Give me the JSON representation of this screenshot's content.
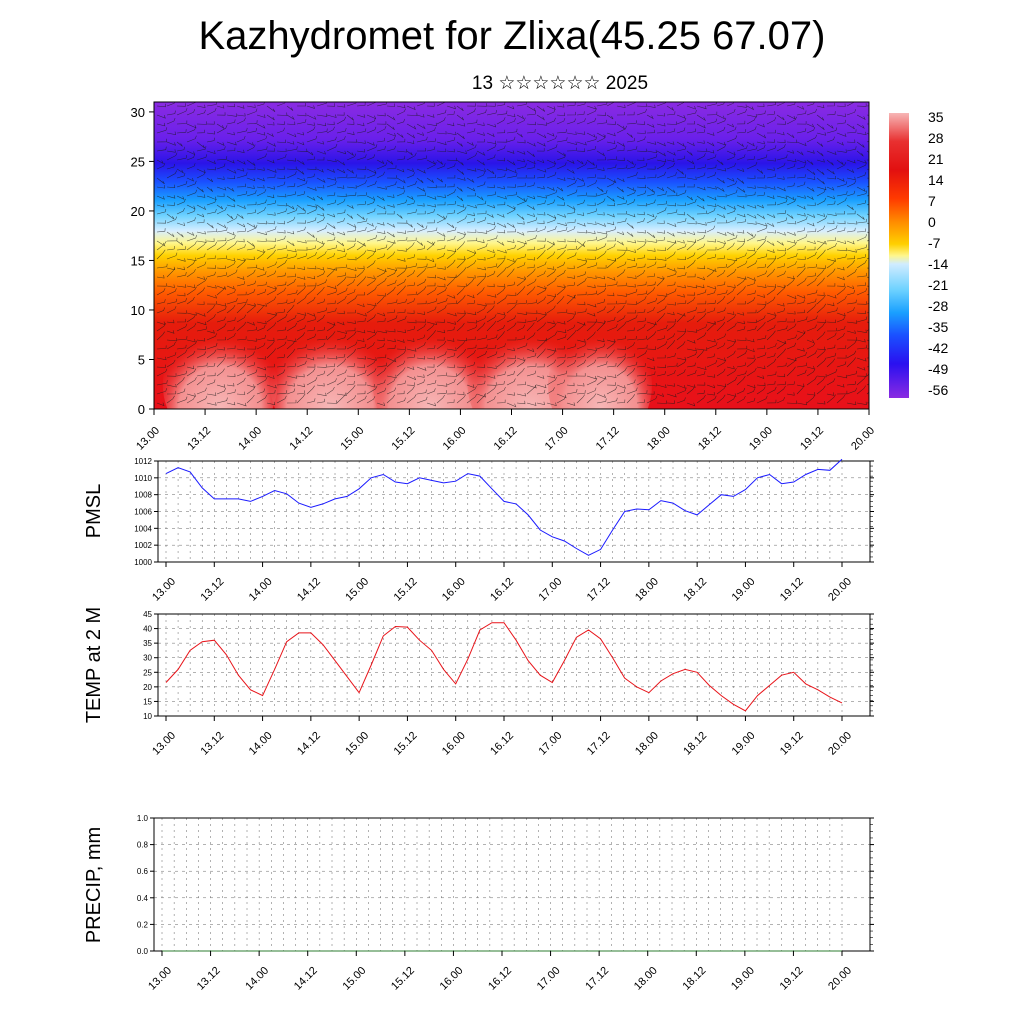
{
  "header": {
    "title": "Kazhydromet for Zlixa(45.25 67.07)",
    "subtitle": "13 ☆☆☆☆☆☆ 2025"
  },
  "time_labels": [
    "13.00",
    "13.12",
    "14.00",
    "14.12",
    "15.00",
    "15.12",
    "16.00",
    "16.12",
    "17.00",
    "17.12",
    "18.00",
    "18.12",
    "19.00",
    "19.12",
    "20.00"
  ],
  "chart_data": [
    {
      "type": "heatmap",
      "name": "cross-section",
      "y_ticks": [
        0,
        5,
        10,
        15,
        20,
        25,
        30
      ],
      "ylim": [
        0,
        31
      ],
      "colorbar": {
        "labels": [
          "35",
          "28",
          "21",
          "14",
          "7",
          "0",
          "-7",
          "-14",
          "-21",
          "-28",
          "-35",
          "-42",
          "-49",
          "-56"
        ],
        "colors": [
          "#f7b6b6",
          "#e83030",
          "#e21010",
          "#ff3a00",
          "#ff6a00",
          "#ff9a00",
          "#ffd000",
          "#fff68a",
          "#d0ecff",
          "#6ed2ff",
          "#1aa0ff",
          "#1a50ff",
          "#2a10f0",
          "#8a2be2"
        ]
      }
    },
    {
      "type": "line",
      "name": "PMSL",
      "ylabel": "PMSL",
      "ylim": [
        1000,
        1012
      ],
      "y_ticks": [
        "1000",
        "1002",
        "1004",
        "1006",
        "1008",
        "1010",
        "1012"
      ],
      "color": "#1a1aff",
      "values": [
        1010.5,
        1011.2,
        1010.7,
        1008.8,
        1007.5,
        1007.5,
        1007.5,
        1007.2,
        1007.8,
        1008.5,
        1008.1,
        1007,
        1006.5,
        1006.9,
        1007.5,
        1007.8,
        1008.7,
        1010,
        1010.4,
        1009.5,
        1009.3,
        1010,
        1009.7,
        1009.4,
        1009.6,
        1010.5,
        1010.2,
        1008.7,
        1007.2,
        1006.9,
        1005.6,
        1003.8,
        1003,
        1002.5,
        1001.6,
        1000.8,
        1001.5,
        1003.8,
        1006,
        1006.3,
        1006.2,
        1007.3,
        1007,
        1006.1,
        1005.6,
        1006.8,
        1008,
        1007.8,
        1008.6,
        1010,
        1010.4,
        1009.3,
        1009.5,
        1010.4,
        1011,
        1010.9,
        1012.2
      ]
    },
    {
      "type": "line",
      "name": "TEMP at 2 M",
      "ylabel": "TEMP at 2 M",
      "ylim": [
        10,
        45
      ],
      "y_ticks": [
        "10",
        "15",
        "20",
        "25",
        "30",
        "35",
        "40",
        "45"
      ],
      "color": "#e8141a",
      "values": [
        21.5,
        26,
        32.5,
        35.5,
        36,
        31,
        24,
        19,
        17,
        26,
        35.5,
        38.5,
        38.5,
        34.5,
        29,
        23.5,
        18,
        27.5,
        37.5,
        40.7,
        40.5,
        36,
        32.5,
        26,
        21,
        29.5,
        39.5,
        42,
        42,
        36,
        29,
        24,
        21.5,
        29,
        37,
        39.5,
        36.5,
        30,
        23,
        20,
        18,
        22,
        24.5,
        26,
        25,
        20.5,
        17,
        14,
        11.8,
        17,
        20.5,
        24,
        25,
        21,
        19,
        16.5,
        14.5
      ]
    },
    {
      "type": "line",
      "name": "PRECIP, mm",
      "ylabel": "PRECIP, mm",
      "ylim": [
        0,
        1
      ],
      "y_ticks": [
        "0.0",
        "0.2",
        "0.4",
        "0.6",
        "0.8",
        "1.0"
      ],
      "color": "#2e7d32",
      "values": [
        0,
        0,
        0,
        0,
        0,
        0,
        0,
        0,
        0,
        0,
        0,
        0,
        0,
        0,
        0,
        0,
        0,
        0,
        0,
        0,
        0,
        0,
        0,
        0,
        0,
        0,
        0,
        0,
        0,
        0,
        0,
        0,
        0,
        0,
        0,
        0,
        0,
        0,
        0,
        0,
        0,
        0,
        0,
        0,
        0,
        0,
        0,
        0,
        0,
        0,
        0,
        0,
        0,
        0,
        0,
        0,
        0
      ]
    }
  ]
}
